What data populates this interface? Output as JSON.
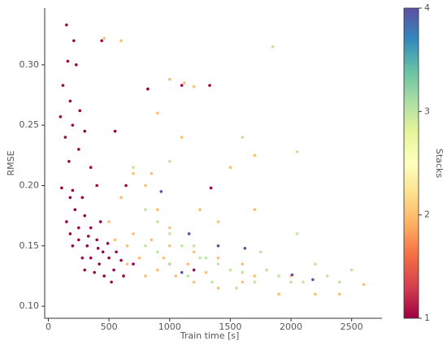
{
  "chart_data": {
    "type": "scatter",
    "xlabel": "Train time [s]",
    "ylabel": "RMSE",
    "xlim": [
      -30,
      2750
    ],
    "ylim": [
      0.09,
      0.347
    ],
    "xticks": [
      0,
      500,
      1000,
      1500,
      2000,
      2500
    ],
    "yticks": [
      {
        "value": 0.1,
        "label": "0.10"
      },
      0.15,
      {
        "value": 0.2,
        "label": "0.20"
      },
      0.25,
      {
        "value": 0.3,
        "label": "0.30"
      }
    ],
    "colormap": "Spectral",
    "colorbar": {
      "label": "Stacks",
      "lim": [
        1,
        4
      ],
      "ticks": [
        1,
        2,
        3,
        4
      ]
    },
    "series": [
      {
        "stacks": 1,
        "x": [
          150,
          210,
          160,
          230,
          120,
          180,
          260,
          100,
          200,
          140,
          300,
          250,
          170,
          350,
          110,
          200,
          280,
          400,
          150,
          220,
          300,
          350,
          180,
          250,
          320,
          400,
          450,
          200,
          280,
          350,
          420,
          500,
          300,
          380,
          460,
          540,
          250,
          330,
          410,
          490,
          560,
          600,
          180,
          430,
          520,
          620,
          700,
          1100,
          1330,
          820,
          550,
          640,
          1340,
          440,
          1000,
          1200
        ],
        "values": [
          0.333,
          0.32,
          0.303,
          0.3,
          0.283,
          0.27,
          0.262,
          0.257,
          0.25,
          0.24,
          0.245,
          0.23,
          0.22,
          0.215,
          0.198,
          0.196,
          0.19,
          0.2,
          0.17,
          0.18,
          0.175,
          0.165,
          0.16,
          0.155,
          0.15,
          0.155,
          0.145,
          0.15,
          0.14,
          0.14,
          0.135,
          0.14,
          0.13,
          0.128,
          0.125,
          0.13,
          0.165,
          0.158,
          0.148,
          0.152,
          0.145,
          0.138,
          0.19,
          0.17,
          0.12,
          0.125,
          0.135,
          0.283,
          0.283,
          0.28,
          0.245,
          0.2,
          0.198,
          0.32,
          0.135,
          0.13
        ]
      },
      {
        "stacks": 2,
        "x": [
          460,
          600,
          1000,
          1120,
          1200,
          900,
          1100,
          1700,
          1500,
          700,
          800,
          600,
          900,
          1400,
          1700,
          500,
          700,
          850,
          1000,
          1200,
          1400,
          1600,
          1800,
          2000,
          2200,
          650,
          750,
          900,
          1050,
          1200,
          1400,
          1600,
          800,
          950,
          1150,
          1300,
          1700,
          2400,
          2600,
          1900,
          550,
          650,
          1000,
          850,
          1250
        ],
        "values": [
          0.322,
          0.32,
          0.288,
          0.285,
          0.282,
          0.26,
          0.24,
          0.225,
          0.215,
          0.21,
          0.2,
          0.19,
          0.18,
          0.17,
          0.18,
          0.17,
          0.16,
          0.155,
          0.15,
          0.145,
          0.14,
          0.135,
          0.13,
          0.125,
          0.11,
          0.15,
          0.14,
          0.13,
          0.125,
          0.12,
          0.115,
          0.12,
          0.125,
          0.14,
          0.135,
          0.128,
          0.125,
          0.11,
          0.118,
          0.11,
          0.155,
          0.135,
          0.165,
          0.21,
          0.18
        ]
      },
      {
        "stacks": 3,
        "x": [
          1850,
          2050,
          1600,
          1000,
          700,
          800,
          900,
          1000,
          1100,
          1200,
          1300,
          1400,
          1500,
          1600,
          1700,
          1800,
          1900,
          2000,
          2100,
          2300,
          2500,
          800,
          1000,
          1150,
          1350,
          1550,
          2200,
          2400,
          900,
          1250,
          2050,
          1750
        ],
        "values": [
          0.315,
          0.228,
          0.24,
          0.22,
          0.215,
          0.18,
          0.17,
          0.16,
          0.15,
          0.15,
          0.14,
          0.135,
          0.13,
          0.128,
          0.12,
          0.13,
          0.125,
          0.12,
          0.12,
          0.125,
          0.13,
          0.15,
          0.135,
          0.125,
          0.12,
          0.115,
          0.135,
          0.12,
          0.145,
          0.14,
          0.16,
          0.145
        ]
      },
      {
        "stacks": 4,
        "x": [
          930,
          1160,
          1620,
          1100,
          2010,
          2180,
          1400
        ],
        "values": [
          0.195,
          0.16,
          0.148,
          0.128,
          0.126,
          0.122,
          0.15
        ]
      }
    ]
  }
}
